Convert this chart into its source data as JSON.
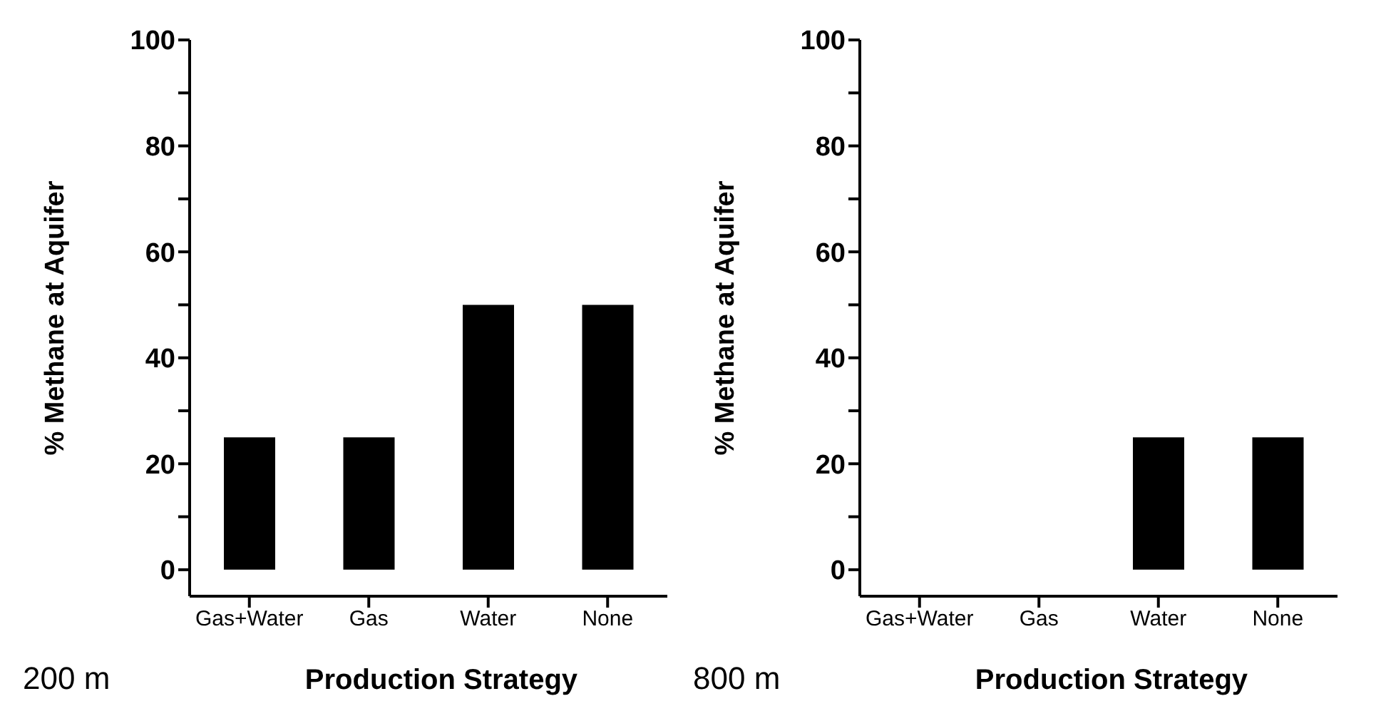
{
  "chart_data": [
    {
      "type": "bar",
      "categories": [
        "Gas+Water",
        "Gas",
        "Water",
        "None"
      ],
      "values": [
        25,
        25,
        50,
        50
      ],
      "color": "#000000",
      "xlabel": "Production Strategy",
      "ylabel": "% Methane at Aquifer",
      "ylim": [
        -5,
        100
      ],
      "yticks": [
        0,
        {
          "value": 10,
          "label": null
        },
        20,
        {
          "value": 30,
          "label": null
        },
        40,
        {
          "value": 50,
          "label": null
        },
        60,
        {
          "value": 70,
          "label": null
        },
        80,
        {
          "value": 90,
          "label": null
        },
        100
      ],
      "grid": false,
      "annotations": [
        "200 m"
      ]
    },
    {
      "type": "bar",
      "categories": [
        "Gas+Water",
        "Gas",
        "Water",
        "None"
      ],
      "values": [
        0,
        0,
        25,
        25
      ],
      "color": "#000000",
      "xlabel": "Production Strategy",
      "ylabel": "% Methane at Aquifer",
      "ylim": [
        -5,
        100
      ],
      "yticks": [
        0,
        {
          "value": 10,
          "label": null
        },
        20,
        {
          "value": 30,
          "label": null
        },
        40,
        {
          "value": 50,
          "label": null
        },
        60,
        {
          "value": 70,
          "label": null
        },
        80,
        {
          "value": 90,
          "label": null
        },
        100
      ],
      "grid": false,
      "annotations": [
        "800 m"
      ]
    }
  ]
}
